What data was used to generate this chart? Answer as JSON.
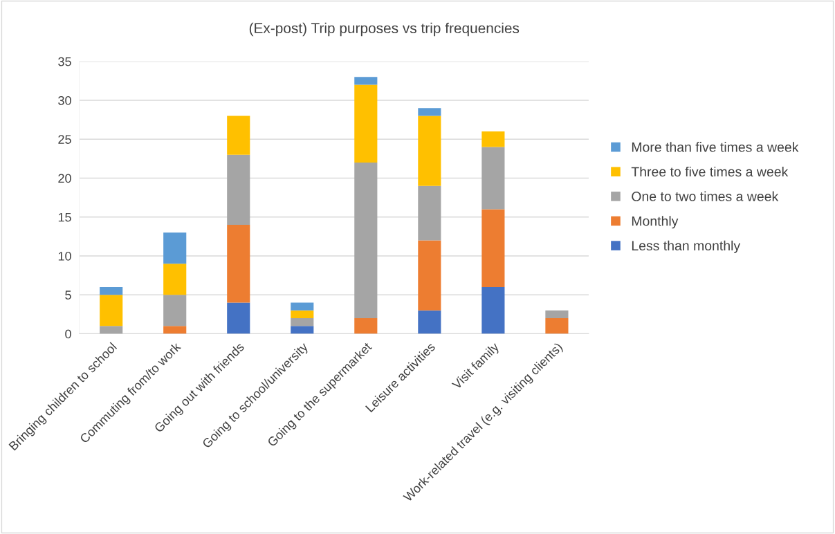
{
  "chart_data": {
    "type": "bar",
    "title": "(Ex-post) Trip purposes vs trip frequencies",
    "stacked": true,
    "grid": "y",
    "legend": "right",
    "categories": [
      "Bringing children to school",
      "Commuting from/to work",
      "Going out with friends",
      "Going to school/university",
      "Going to the supermarket",
      "Leisure activities",
      "Visit family",
      "Work-related travel (e.g. visiting clients)"
    ],
    "series": [
      {
        "name": "Less than monthly",
        "color": "#4472c4",
        "values": [
          0,
          0,
          4,
          1,
          0,
          3,
          6,
          0
        ]
      },
      {
        "name": "Monthly",
        "color": "#ed7d31",
        "values": [
          0,
          1,
          10,
          0,
          2,
          9,
          10,
          2
        ]
      },
      {
        "name": "One to two times a week",
        "color": "#a5a5a5",
        "values": [
          1,
          4,
          9,
          1,
          20,
          7,
          8,
          1
        ]
      },
      {
        "name": "Three to five times a week",
        "color": "#ffc000",
        "values": [
          4,
          4,
          5,
          1,
          10,
          9,
          2,
          0
        ]
      },
      {
        "name": "More than five times a week",
        "color": "#5b9bd5",
        "values": [
          1,
          4,
          0,
          1,
          1,
          1,
          0,
          0
        ]
      }
    ],
    "ylim": [
      0,
      35
    ],
    "yticks": [
      0,
      5,
      10,
      15,
      20,
      25,
      30,
      35
    ]
  }
}
